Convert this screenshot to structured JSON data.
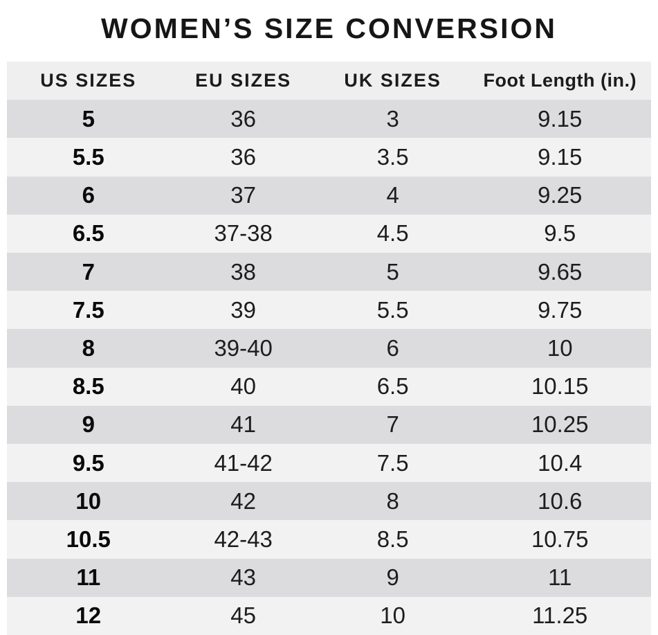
{
  "title": "WOMEN’S SIZE CONVERSION",
  "chart_data": {
    "type": "table",
    "title": "WOMEN’S SIZE CONVERSION",
    "columns": [
      "US SIZES",
      "EU SIZES",
      "UK SIZES",
      "Foot Length (in.)"
    ],
    "rows": [
      [
        "5",
        "36",
        "3",
        "9.15"
      ],
      [
        "5.5",
        "36",
        "3.5",
        "9.15"
      ],
      [
        "6",
        "37",
        "4",
        "9.25"
      ],
      [
        "6.5",
        "37-38",
        "4.5",
        "9.5"
      ],
      [
        "7",
        "38",
        "5",
        "9.65"
      ],
      [
        "7.5",
        "39",
        "5.5",
        "9.75"
      ],
      [
        "8",
        "39-40",
        "6",
        "10"
      ],
      [
        "8.5",
        "40",
        "6.5",
        "10.15"
      ],
      [
        "9",
        "41",
        "7",
        "10.25"
      ],
      [
        "9.5",
        "41-42",
        "7.5",
        "10.4"
      ],
      [
        "10",
        "42",
        "8",
        "10.6"
      ],
      [
        "10.5",
        "42-43",
        "8.5",
        "10.75"
      ],
      [
        "11",
        "43",
        "9",
        "11"
      ],
      [
        "12",
        "45",
        "10",
        "11.25"
      ]
    ],
    "layout": {
      "striping": "rows alternate dark/light starting dark",
      "first_column_bold": true,
      "grid": "none"
    },
    "colors": {
      "header_bg": "#efefef",
      "row_dark": "#dcdcde",
      "row_light": "#f2f2f3",
      "text": "#1d1d1d",
      "title_text": "#161616",
      "page_bg": "#ffffff"
    }
  }
}
